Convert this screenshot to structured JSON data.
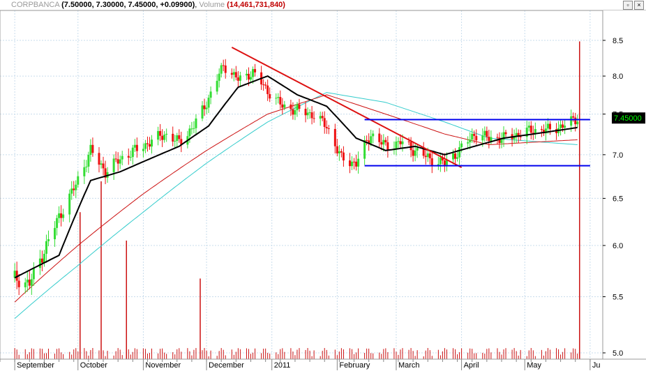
{
  "header": {
    "symbol": "CORPBANCA",
    "ohlc": "(7.50000, 7.30000, 7.45000, +0.09900)",
    "volume_label": "Volume",
    "volume_value": "(14,461,731,840)",
    "restore_icon": "restore-icon",
    "close_icon": "close-icon"
  },
  "colors": {
    "up": "#33dd33",
    "down": "#ee1111",
    "ma_black": "#000000",
    "ma_red": "#cc1111",
    "ma_cyan": "#33cccc",
    "trendline": "#dd1111",
    "channel": "#0000ee",
    "grid": "#c8dcec",
    "volume": "#cc1111",
    "price_flag_bg": "#000000",
    "price_flag_text": "#00ff00"
  },
  "chart_data": {
    "type": "candlestick",
    "title": "CORPBANCA",
    "y_ticks": [
      "8.5",
      "8.0",
      "7.5",
      "7.0",
      "6.5",
      "6.0",
      "5.5",
      "5.0"
    ],
    "y_scale": "log",
    "ylim": [
      5.0,
      8.6
    ],
    "last_price_label": "7.45000",
    "x_tick_labels": [
      "September",
      "October",
      "November",
      "December",
      "2011",
      "February",
      "March",
      "April",
      "May",
      "Ju"
    ],
    "grid": true,
    "close_points": [
      [
        "2010-09-01",
        5.68
      ],
      [
        "2010-09-08",
        5.62
      ],
      [
        "2010-09-15",
        5.95
      ],
      [
        "2010-09-22",
        6.3
      ],
      [
        "2010-09-30",
        6.65
      ],
      [
        "2010-10-07",
        7.05
      ],
      [
        "2010-10-14",
        6.8
      ],
      [
        "2010-10-21",
        6.95
      ],
      [
        "2010-10-28",
        7.05
      ],
      [
        "2010-11-04",
        7.15
      ],
      [
        "2010-11-11",
        7.25
      ],
      [
        "2010-11-18",
        7.15
      ],
      [
        "2010-11-25",
        7.35
      ],
      [
        "2010-12-02",
        7.7
      ],
      [
        "2010-12-09",
        8.15
      ],
      [
        "2010-12-16",
        7.95
      ],
      [
        "2010-12-23",
        8.05
      ],
      [
        "2010-12-30",
        7.8
      ],
      [
        "2011-01-06",
        7.6
      ],
      [
        "2011-01-13",
        7.55
      ],
      [
        "2011-01-20",
        7.5
      ],
      [
        "2011-01-27",
        7.35
      ],
      [
        "2011-02-03",
        6.95
      ],
      [
        "2011-02-10",
        6.9
      ],
      [
        "2011-02-17",
        7.25
      ],
      [
        "2011-02-24",
        7.1
      ],
      [
        "2011-03-03",
        7.15
      ],
      [
        "2011-03-10",
        7.05
      ],
      [
        "2011-03-17",
        6.95
      ],
      [
        "2011-03-24",
        6.9
      ],
      [
        "2011-03-31",
        7.05
      ],
      [
        "2011-04-07",
        7.25
      ],
      [
        "2011-04-14",
        7.2
      ],
      [
        "2011-04-21",
        7.2
      ],
      [
        "2011-04-28",
        7.25
      ],
      [
        "2011-05-05",
        7.3
      ],
      [
        "2011-05-12",
        7.3
      ],
      [
        "2011-05-19",
        7.35
      ],
      [
        "2011-05-26",
        7.45
      ]
    ],
    "moving_average_black": [
      [
        "2010-09-01",
        5.68
      ],
      [
        "2010-09-22",
        5.9
      ],
      [
        "2010-10-07",
        6.7
      ],
      [
        "2010-10-21",
        6.8
      ],
      [
        "2010-11-04",
        6.95
      ],
      [
        "2010-11-18",
        7.1
      ],
      [
        "2010-12-02",
        7.35
      ],
      [
        "2010-12-16",
        7.85
      ],
      [
        "2010-12-30",
        8.0
      ],
      [
        "2011-01-13",
        7.75
      ],
      [
        "2011-01-27",
        7.6
      ],
      [
        "2011-02-10",
        7.2
      ],
      [
        "2011-02-24",
        7.05
      ],
      [
        "2011-03-10",
        7.1
      ],
      [
        "2011-03-24",
        7.0
      ],
      [
        "2011-04-07",
        7.1
      ],
      [
        "2011-04-21",
        7.2
      ],
      [
        "2011-05-05",
        7.25
      ],
      [
        "2011-05-26",
        7.33
      ]
    ],
    "moving_average_red": [
      [
        "2010-09-01",
        5.45
      ],
      [
        "2010-10-01",
        6.0
      ],
      [
        "2010-11-01",
        6.55
      ],
      [
        "2010-12-01",
        7.05
      ],
      [
        "2010-12-30",
        7.5
      ],
      [
        "2011-01-27",
        7.75
      ],
      [
        "2011-02-24",
        7.5
      ],
      [
        "2011-03-24",
        7.25
      ],
      [
        "2011-04-14",
        7.12
      ],
      [
        "2011-05-26",
        7.18
      ]
    ],
    "moving_average_cyan": [
      [
        "2010-09-01",
        5.3
      ],
      [
        "2010-10-01",
        5.8
      ],
      [
        "2010-11-01",
        6.35
      ],
      [
        "2010-12-01",
        6.9
      ],
      [
        "2010-12-30",
        7.4
      ],
      [
        "2011-01-27",
        7.78
      ],
      [
        "2011-02-24",
        7.65
      ],
      [
        "2011-03-24",
        7.4
      ],
      [
        "2011-04-14",
        7.2
      ],
      [
        "2011-05-26",
        7.12
      ]
    ],
    "trendline": [
      [
        "2010-12-13",
        8.4
      ],
      [
        "2011-04-01",
        6.85
      ]
    ],
    "channel_upper": [
      [
        "2011-02-14",
        7.43
      ],
      [
        "2011-06-01",
        7.43
      ]
    ],
    "channel_lower": [
      [
        "2011-02-14",
        6.87
      ],
      [
        "2011-06-01",
        6.87
      ]
    ],
    "volume_spikes": [
      [
        "2010-10-02",
        6.2
      ],
      [
        "2010-10-12",
        7.5
      ],
      [
        "2010-10-24",
        5.0
      ],
      [
        "2010-11-28",
        3.4
      ],
      [
        "2011-05-27",
        13.4
      ]
    ]
  }
}
